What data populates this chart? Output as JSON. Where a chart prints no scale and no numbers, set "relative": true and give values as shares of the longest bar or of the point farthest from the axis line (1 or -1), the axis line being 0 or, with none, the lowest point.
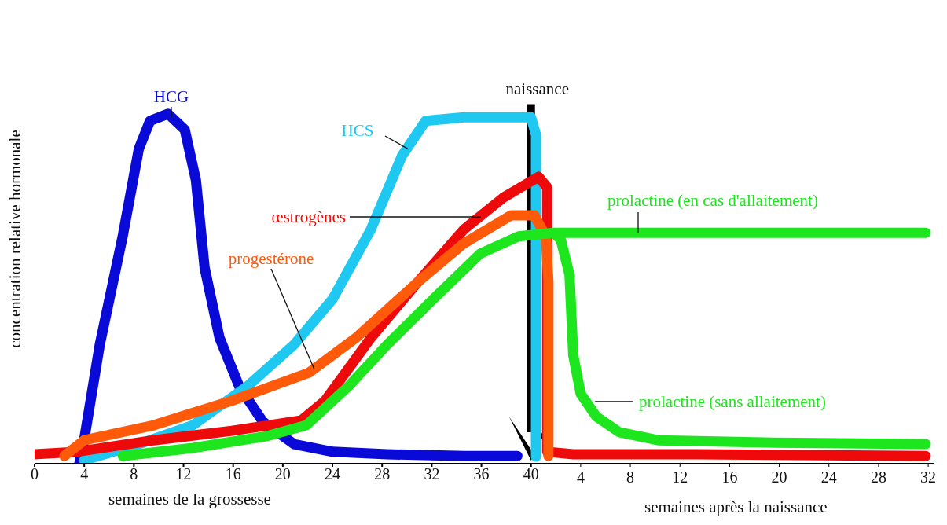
{
  "chart_data": {
    "type": "line",
    "relative": true,
    "ylabel": "concentration relative hormonale",
    "xlabel": "semaines de la grossesse",
    "x2label": "semaines après la naissance",
    "xlim": [
      0,
      72.5
    ],
    "xticks": [
      0,
      4,
      8,
      12,
      16,
      20,
      24,
      28,
      32,
      36,
      40
    ],
    "x2lim": [
      -40,
      32.5
    ],
    "x2ticks": [
      4,
      8,
      12,
      16,
      20,
      24,
      28,
      32
    ],
    "grid": false,
    "legend": false,
    "marker": "none",
    "line_style": "solid",
    "ref_lines": [
      {
        "axis": "x",
        "value": 40,
        "label": "naissance",
        "color": "#000000"
      }
    ],
    "series": [
      {
        "name": "HCG",
        "color": "#0a0ad8",
        "x": [
          3.6,
          4,
          5.25,
          7.1,
          8.4,
          9.3,
          10.75,
          12.1,
          13,
          13.7,
          14.9,
          16.5,
          18.4,
          20.9,
          24,
          28.4,
          34.6,
          38.9
        ],
        "values": [
          0,
          0.07,
          0.34,
          0.65,
          0.9,
          0.98,
          1,
          0.955,
          0.81,
          0.56,
          0.36,
          0.22,
          0.12,
          0.056,
          0.034,
          0.027,
          0.022,
          0.022
        ]
      },
      {
        "name": "HCS",
        "color": "#1ec8f0",
        "x": [
          4,
          8.4,
          12.75,
          17.1,
          20.9,
          24,
          27.1,
          29.6,
          31.5,
          34.6,
          40,
          40.4,
          40.4
        ],
        "values": [
          0.01,
          0.056,
          0.11,
          0.22,
          0.34,
          0.47,
          0.67,
          0.88,
          0.98,
          0.99,
          0.99,
          0.94,
          0.02
        ]
      },
      {
        "name": "œstrogènes",
        "color": "#ee0a0a",
        "x": [
          0,
          3.4,
          9.6,
          15.9,
          21.5,
          23.4,
          27.1,
          30.9,
          34.6,
          37.75,
          40.6,
          41.3,
          41.3,
          43.4,
          53.4,
          71.8
        ],
        "values": [
          0.027,
          0.034,
          0.067,
          0.094,
          0.124,
          0.18,
          0.36,
          0.52,
          0.67,
          0.76,
          0.82,
          0.79,
          0.034,
          0.027,
          0.027,
          0.022
        ]
      },
      {
        "name": "progestérone",
        "color": "#ff5a0a",
        "x": [
          2.4,
          4,
          9.6,
          15.9,
          22.1,
          25.9,
          30.9,
          34.6,
          38.4,
          40.25,
          41.2,
          41.4,
          41.4
        ],
        "values": [
          0.022,
          0.067,
          0.11,
          0.18,
          0.26,
          0.36,
          0.52,
          0.63,
          0.71,
          0.71,
          0.65,
          0.52,
          0.022
        ]
      },
      {
        "name": "prolactine (en cas d'allaitement)",
        "color": "#1ee61e",
        "x": [
          7.1,
          12.75,
          18.75,
          21.9,
          25.25,
          28.4,
          32.1,
          35.9,
          39,
          41.8,
          47.1,
          71.8
        ],
        "values": [
          0.022,
          0.045,
          0.079,
          0.11,
          0.22,
          0.34,
          0.47,
          0.6,
          0.65,
          0.66,
          0.66,
          0.66
        ]
      },
      {
        "name": "prolactine (sans allaitement)",
        "color": "#1ee61e",
        "x": [
          41.8,
          42.4,
          43.1,
          43.4,
          44,
          45.25,
          47.1,
          50.25,
          59.6,
          71.8
        ],
        "values": [
          0.66,
          0.64,
          0.54,
          0.31,
          0.2,
          0.135,
          0.09,
          0.067,
          0.06,
          0.056
        ]
      }
    ]
  }
}
